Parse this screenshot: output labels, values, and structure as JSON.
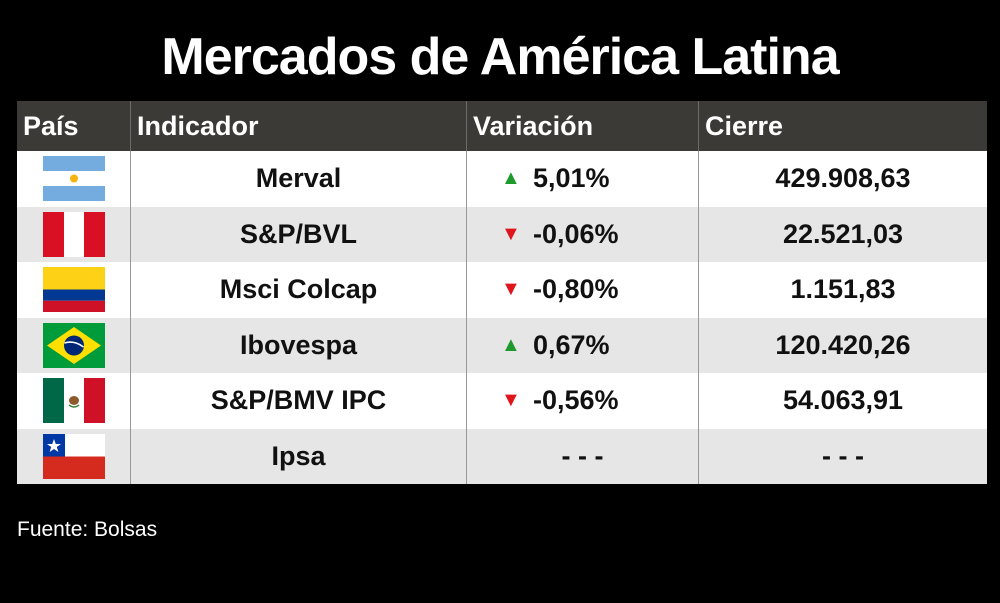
{
  "title": "Mercados de América Latina",
  "headers": [
    "País",
    "Indicador",
    "Variación",
    "Cierre"
  ],
  "rows": [
    {
      "flag": "argentina-flag",
      "indicator": "Merval",
      "direction": "up",
      "arrow": "▲",
      "variation": "5,01%",
      "close": "429.908,63"
    },
    {
      "flag": "peru-flag",
      "indicator": "S&P/BVL",
      "direction": "down",
      "arrow": "▼",
      "variation": "-0,06%",
      "close": "22.521,03"
    },
    {
      "flag": "colombia-flag",
      "indicator": "Msci Colcap",
      "direction": "down",
      "arrow": "▼",
      "variation": "-0,80%",
      "close": "1.151,83"
    },
    {
      "flag": "brazil-flag",
      "indicator": "Ibovespa",
      "direction": "up",
      "arrow": "▲",
      "variation": "0,67%",
      "close": "120.420,26"
    },
    {
      "flag": "mexico-flag",
      "indicator": "S&P/BMV IPC",
      "direction": "down",
      "arrow": "▼",
      "variation": "-0,56%",
      "close": "54.063,91"
    },
    {
      "flag": "chile-flag",
      "indicator": "Ipsa",
      "direction": "none",
      "arrow": "",
      "variation": "- - -",
      "close": "- - -"
    }
  ],
  "colors": {
    "up": "#1e9a2c",
    "down": "#e0141b",
    "header_bg": "#3c3a37"
  },
  "source": "Fuente: Bolsas"
}
